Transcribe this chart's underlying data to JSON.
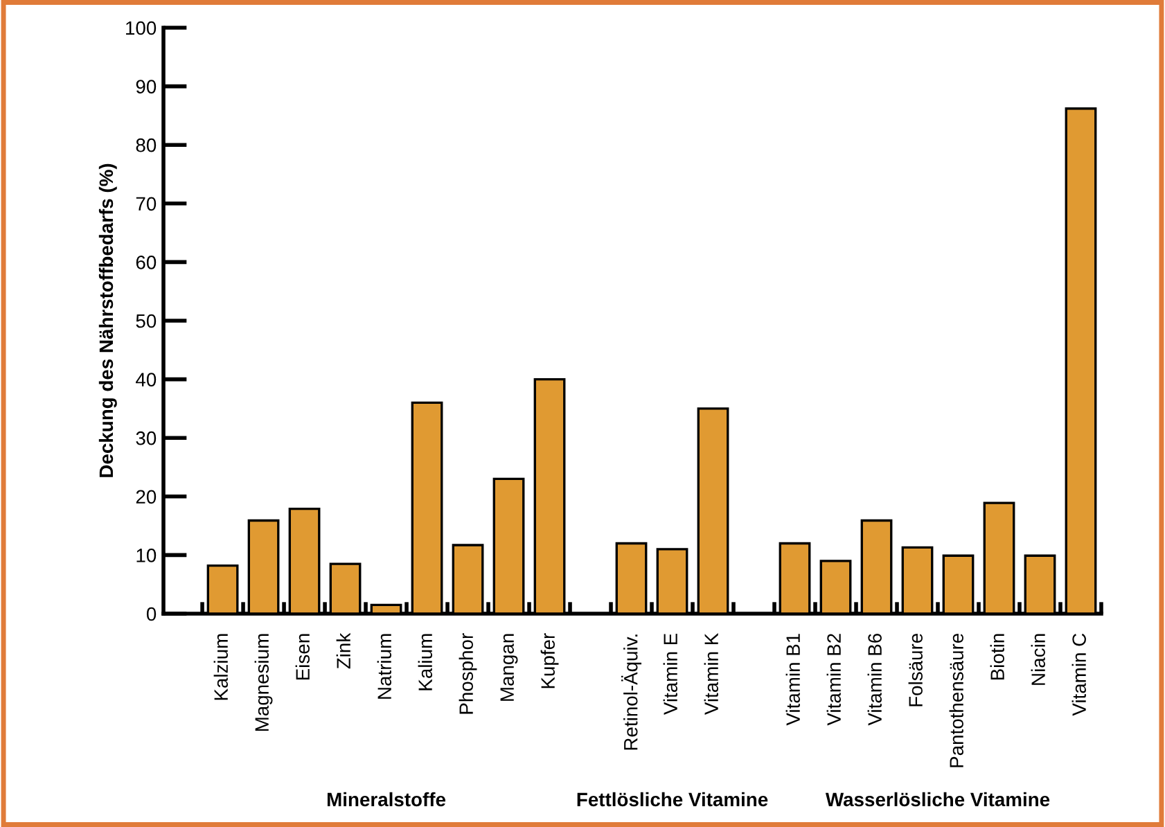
{
  "chart_data": {
    "type": "bar",
    "ylabel": "Deckung des Nährstoffbedarfs (%)",
    "categories": [
      null,
      "Kalzium",
      "Magnesium",
      "Eisen",
      "Zink",
      "Natrium",
      "Kalium",
      "Phosphor",
      "Mangan",
      "Kupfer",
      null,
      "Retinol-Äquiv.",
      "Vitamin E",
      "Vitamin K",
      null,
      "Vitamin B1",
      "Vitamin B2",
      "Vitamin B6",
      "Folsäure",
      "Pantothensäure",
      "Biotin",
      "Niacin",
      "Vitamin C"
    ],
    "values": [
      null,
      8.2,
      15.9,
      17.9,
      8.5,
      1.5,
      36,
      11.7,
      23,
      40,
      null,
      12,
      11,
      35,
      null,
      12,
      9,
      15.9,
      11.3,
      9.9,
      18.9,
      9.9,
      86.2
    ],
    "color": "#e09a32",
    "ylim": [
      0,
      100
    ],
    "yticks": [
      0,
      10,
      20,
      30,
      40,
      50,
      60,
      70,
      80,
      90,
      100
    ],
    "annotations": [
      "Mineralstoffe",
      "Fettlösliche Vitamine",
      "Wasserlösliche Vitamine"
    ],
    "grid": false,
    "legend": false
  }
}
